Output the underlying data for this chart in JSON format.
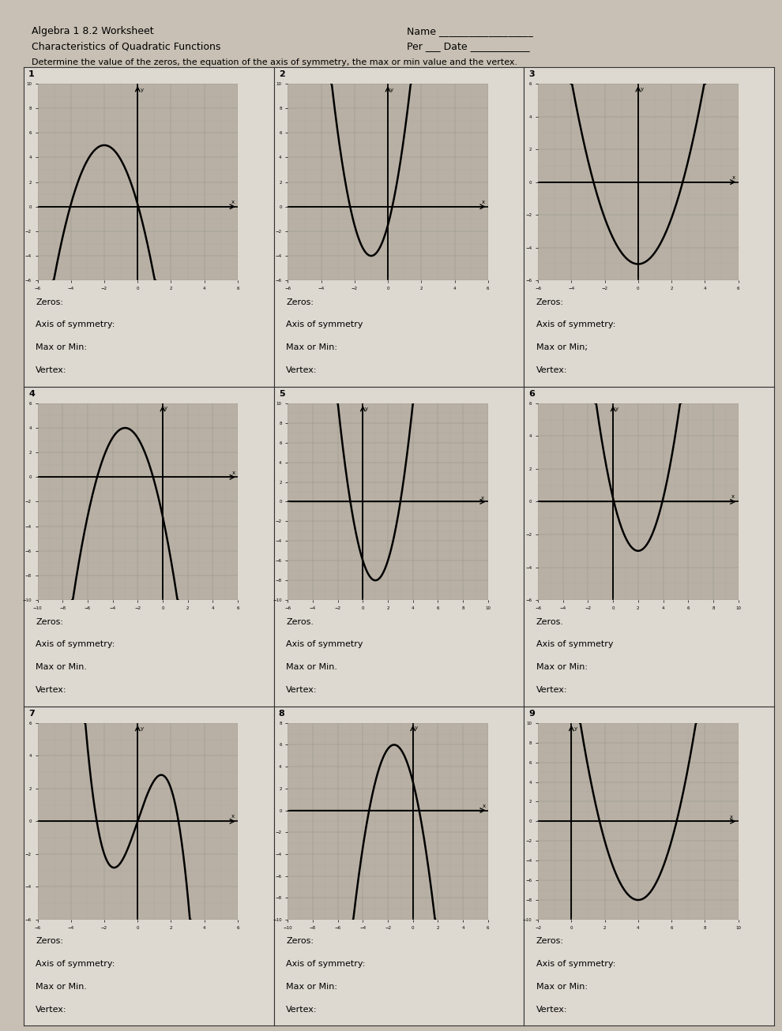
{
  "title_left1": "Algebra 1 8.2 Worksheet",
  "title_left2": "Characteristics of Quadratic Functions",
  "title_right1": "Name ___________________",
  "title_right2": "Per ___ Date ____________",
  "instruction": "Determine the value of the zeros, the equation of the axis of symmetry, the max or min value and the vertex.",
  "bg_color": "#c8c0b4",
  "cell_bg": "#ddd8d0",
  "graph_bg": "#b8b0a4",
  "problems": [
    {
      "number": "1",
      "curve_type": "downward_bell_left",
      "xlim": [
        -6,
        6
      ],
      "ylim": [
        -6,
        10
      ],
      "zeros": "Zeros:",
      "axis": "Axis of symmetry:",
      "maxmin": "Max or Min:",
      "vertex": "Vertex:"
    },
    {
      "number": "2",
      "curve_type": "upward_narrow_left",
      "xlim": [
        -6,
        6
      ],
      "ylim": [
        -6,
        10
      ],
      "zeros": "Zeros:",
      "axis": "Axis of symmetry",
      "maxmin": "Max or Min:",
      "vertex": "Vertex:"
    },
    {
      "number": "3",
      "curve_type": "upward_wide_center",
      "xlim": [
        -6,
        6
      ],
      "ylim": [
        -6,
        6
      ],
      "zeros": "Zeros:",
      "axis": "Axis of symmetry:",
      "maxmin": "Max or Min;",
      "vertex": "Vertex:"
    },
    {
      "number": "4",
      "curve_type": "downward_bell_left2",
      "xlim": [
        -10,
        6
      ],
      "ylim": [
        -10,
        6
      ],
      "zeros": "Zeros:",
      "axis": "Axis of symmetry:",
      "maxmin": "Max or Min.",
      "vertex": "Vertex:"
    },
    {
      "number": "5",
      "curve_type": "upward_narrow_center",
      "xlim": [
        -6,
        10
      ],
      "ylim": [
        -10,
        10
      ],
      "zeros": "Zeros.",
      "axis": "Axis of symmetry",
      "maxmin": "Max or Min.",
      "vertex": "Vertex:"
    },
    {
      "number": "6",
      "curve_type": "upward_right_offset",
      "xlim": [
        -6,
        10
      ],
      "ylim": [
        -6,
        6
      ],
      "zeros": "Zeros.",
      "axis": "Axis of symmetry",
      "maxmin": "Max or Min:",
      "vertex": "Vertex:"
    },
    {
      "number": "7",
      "curve_type": "cubic_wave",
      "xlim": [
        -6,
        6
      ],
      "ylim": [
        -6,
        6
      ],
      "zeros": "Zeros:",
      "axis": "Axis of symmetry:",
      "maxmin": "Max or Min.",
      "vertex": "Vertex:"
    },
    {
      "number": "8",
      "curve_type": "downward_bell_center",
      "xlim": [
        -10,
        6
      ],
      "ylim": [
        -10,
        8
      ],
      "zeros": "Zeros:",
      "axis": "Axis of symmetry:",
      "maxmin": "Max or Min:",
      "vertex": "Vertex:"
    },
    {
      "number": "9",
      "curve_type": "upward_narrow_right",
      "xlim": [
        -2,
        10
      ],
      "ylim": [
        -10,
        10
      ],
      "zeros": "Zeros:",
      "axis": "Axis of symmetry:",
      "maxmin": "Max or Min:",
      "vertex": "Vertex:"
    }
  ]
}
